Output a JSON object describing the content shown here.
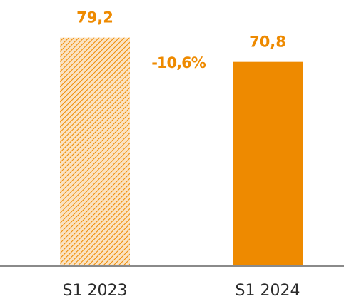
{
  "chart_data": {
    "type": "bar",
    "categories": [
      "S1 2023",
      "S1 2024"
    ],
    "values": [
      79.2,
      70.8
    ],
    "value_labels": [
      "79,2",
      "70,8"
    ],
    "color": "#EE8A00",
    "bar_styles": [
      "hatched",
      "solid"
    ],
    "annotation": "-10,6%",
    "ylim": [
      0,
      90
    ]
  }
}
